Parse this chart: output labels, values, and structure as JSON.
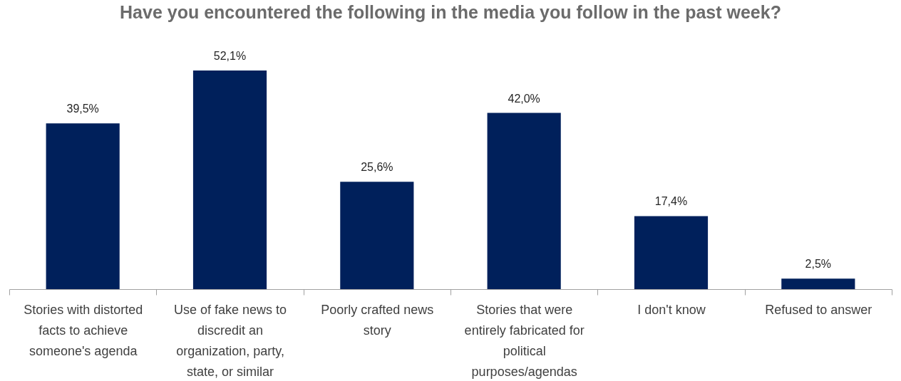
{
  "chart_data": {
    "type": "bar",
    "title": "Have you encountered the following in the media you follow in the past week?",
    "categories": [
      "Stories with distorted facts to achieve someone's agenda",
      "Use of fake news to discredit an organization, party, state, or similar",
      "Poorly crafted news story",
      "Stories that were entirely fabricated for political purposes/agendas",
      "I don't know",
      "Refused to answer"
    ],
    "values": [
      39.5,
      52.1,
      25.6,
      42.0,
      17.4,
      2.5
    ],
    "value_labels": [
      "39,5%",
      "52,1%",
      "25,6%",
      "42,0%",
      "17,4%",
      "2,5%"
    ],
    "color": "#00205b"
  }
}
